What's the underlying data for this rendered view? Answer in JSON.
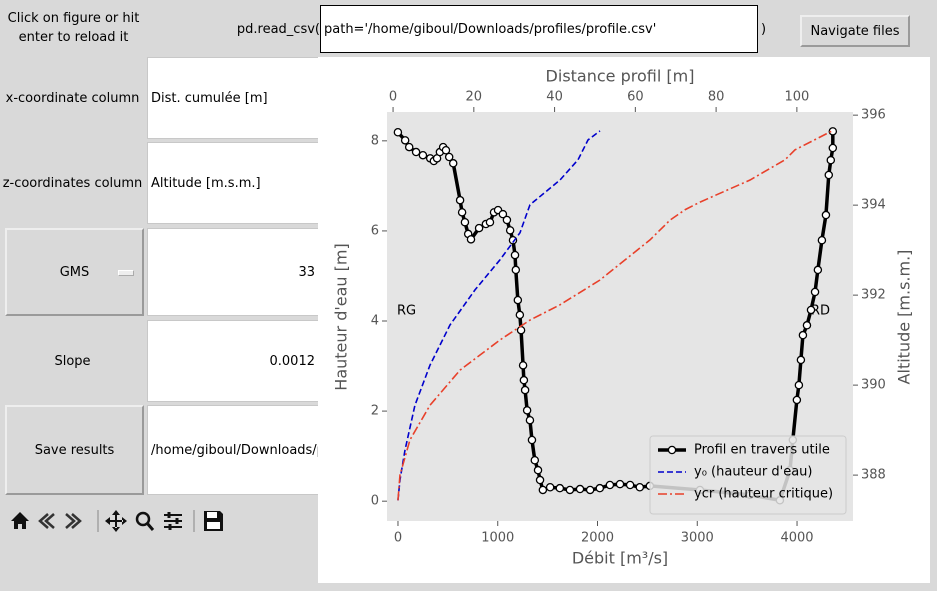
{
  "reload_hint": "Click on figure or hit enter to reload it",
  "read_csv": {
    "prefix": "pd.read_csv(",
    "value": "path='/home/giboul/Downloads/profiles/profile.csv'",
    "suffix": ")"
  },
  "navigate_button": "Navigate files",
  "fields": [
    {
      "label": "x-coordinate column",
      "value": "Dist. cumulée [m]"
    },
    {
      "label": "z-coordinates column",
      "value": "Altitude [m.s.m.]"
    },
    {
      "label": "GMS",
      "value": "33"
    },
    {
      "label": "Slope",
      "value": "0.0012"
    },
    {
      "label": "Save results",
      "value": "/home/giboul/Downloads/p"
    }
  ],
  "chart_data": {
    "type": "line",
    "xlabel": "Débit [m³/s]",
    "x2label": "Distance profil [m]",
    "ylabel": "Hauteur d'eau [m]",
    "y2label": "Altitude [m.s.m.]",
    "xlim": [
      -110,
      4561
    ],
    "xticks": [
      0,
      1000,
      2000,
      3000,
      4000
    ],
    "x2lim": [
      -1.5,
      113.9
    ],
    "x2ticks": [
      0,
      20,
      40,
      60,
      80,
      100
    ],
    "ylim": [
      -0.44,
      8.64
    ],
    "yticks": [
      0,
      2,
      4,
      6,
      8
    ],
    "y2lim": [
      386.98,
      396.07
    ],
    "y2ticks": [
      388,
      390,
      392,
      394,
      396
    ],
    "annotations": [
      "RG",
      "RD"
    ],
    "legend": "lower right",
    "grid": false,
    "series": [
      {
        "name": "Profil en travers utile",
        "color": "#000000",
        "marker": "o",
        "xaxis": "x2",
        "axis": "y2",
        "x": [
          1.2,
          3.0,
          4.0,
          5.7,
          7.4,
          9.2,
          10.1,
          10.9,
          11.6,
          12.4,
          13.1,
          13.9,
          14.9,
          16.6,
          17.1,
          17.8,
          18.6,
          19.3,
          21.3,
          23.0,
          24.0,
          25.0,
          26.0,
          27.2,
          28.2,
          29.0,
          29.7,
          30.2,
          30.4,
          30.9,
          31.4,
          31.7,
          32.2,
          32.4,
          32.7,
          33.2,
          33.9,
          34.4,
          35.1,
          35.9,
          36.4,
          37.1,
          38.9,
          41.3,
          43.8,
          46.3,
          48.8,
          51.2,
          53.7,
          56.2,
          58.7,
          61.1,
          63.6,
          76.0,
          88.4,
          95.8,
          98.3,
          99.0,
          100.0,
          100.5,
          101.0,
          101.5,
          102.5,
          103.5,
          104.5,
          105.2,
          106.2,
          107.2,
          107.9,
          108.4,
          108.9,
          108.9
        ],
        "values": [
          395.62,
          395.44,
          395.29,
          395.18,
          395.11,
          395.04,
          394.98,
          395.04,
          395.18,
          395.29,
          395.22,
          395.07,
          394.93,
          394.11,
          393.84,
          393.62,
          393.36,
          393.24,
          393.49,
          393.58,
          393.62,
          393.84,
          393.89,
          393.8,
          393.67,
          393.44,
          393.22,
          392.89,
          392.56,
          391.89,
          391.56,
          391.22,
          390.44,
          390.11,
          389.89,
          389.44,
          389.22,
          388.78,
          388.33,
          388.11,
          387.89,
          387.67,
          387.73,
          387.71,
          387.67,
          387.69,
          387.67,
          387.71,
          387.78,
          387.8,
          387.78,
          387.73,
          387.76,
          387.67,
          387.56,
          387.44,
          388.11,
          388.78,
          389.67,
          390.0,
          390.56,
          391.11,
          391.33,
          391.67,
          392.07,
          392.56,
          393.22,
          393.78,
          394.67,
          395.0,
          395.27,
          395.64
        ]
      },
      {
        "name": "y₀ (hauteur d'eau)",
        "color": "#0000cc",
        "linestyle": "dashed",
        "x": [
          0,
          20,
          70,
          170,
          321,
          521,
          772,
          1023,
          1223,
          1323,
          1624,
          1805,
          1905,
          2025
        ],
        "values": [
          0.02,
          0.47,
          1.13,
          2.13,
          3.02,
          3.91,
          4.69,
          5.36,
          5.96,
          6.58,
          7.13,
          7.58,
          8.02,
          8.22
        ]
      },
      {
        "name": "ycr (hauteur critique)",
        "color": "#e8402a",
        "linestyle": "dashdot",
        "x": [
          0,
          20,
          120,
          321,
          622,
          1023,
          1323,
          1624,
          2025,
          2526,
          2727,
          2877,
          3028,
          3529,
          3880,
          3980,
          4351
        ],
        "values": [
          0.02,
          0.58,
          1.36,
          2.13,
          2.91,
          3.58,
          4.02,
          4.36,
          4.91,
          5.8,
          6.24,
          6.47,
          6.64,
          7.13,
          7.58,
          7.8,
          8.22
        ]
      }
    ]
  }
}
